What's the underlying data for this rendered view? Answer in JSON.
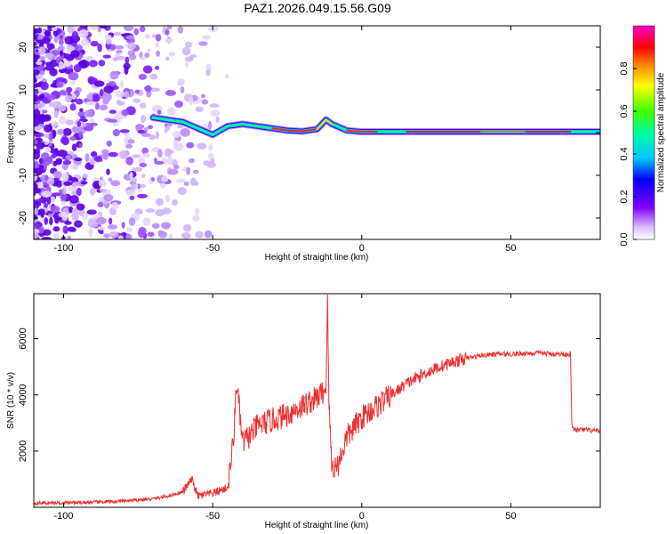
{
  "title": "PAZ1.2026.049.15.56.G09",
  "chart_data": [
    {
      "type": "heatmap",
      "xlabel": "Height of straight line (km)",
      "ylabel": "Frequency (Hz)",
      "xlim": [
        -110,
        80
      ],
      "ylim": [
        -25,
        25
      ],
      "xticks": [
        -100,
        -50,
        0,
        50
      ],
      "yticks": [
        -20,
        -10,
        0,
        10,
        20
      ],
      "colorbar": {
        "label": "Normalized spectral amplitude",
        "range": [
          0,
          1
        ],
        "ticks": [
          0.0,
          0.2,
          0.4,
          0.6,
          0.8
        ]
      },
      "ridge": {
        "x": [
          -70,
          -65,
          -60,
          -55,
          -50,
          -45,
          -40,
          -35,
          -30,
          -25,
          -20,
          -15,
          -12,
          -10,
          -5,
          0,
          10,
          20,
          40,
          60,
          70,
          80
        ],
        "frequency": [
          3.5,
          3,
          2.5,
          1,
          -0.5,
          1.5,
          2,
          1.5,
          1,
          0.5,
          0.3,
          0.8,
          3,
          2,
          0.5,
          0.2,
          0.2,
          0.2,
          0.2,
          0.2,
          0.2,
          0.2
        ]
      }
    },
    {
      "type": "line",
      "xlabel": "Height of straight line (km)",
      "ylabel": "SNR (10 * v/v)",
      "xlim": [
        -110,
        80
      ],
      "ylim": [
        0,
        7600
      ],
      "xticks": [
        -100,
        -50,
        0,
        50
      ],
      "yticks": [
        2000,
        4000,
        6000
      ],
      "color": "#f03030",
      "x": [
        -110,
        -100,
        -90,
        -80,
        -70,
        -65,
        -60,
        -57,
        -55,
        -50,
        -45,
        -43,
        -42,
        -40,
        -38,
        -35,
        -30,
        -25,
        -20,
        -15,
        -12,
        -11.5,
        -11,
        -10,
        -8,
        -5,
        0,
        5,
        10,
        15,
        20,
        25,
        30,
        35,
        40,
        45,
        50,
        55,
        60,
        65,
        70,
        70.5,
        72,
        75,
        80
      ],
      "y": [
        150,
        160,
        180,
        220,
        300,
        400,
        550,
        1000,
        400,
        500,
        700,
        2400,
        4500,
        2300,
        2500,
        2900,
        3100,
        3300,
        3600,
        3900,
        4200,
        7600,
        3600,
        1400,
        1500,
        2500,
        3200,
        3600,
        4000,
        4400,
        4700,
        4950,
        5150,
        5300,
        5400,
        5450,
        5450,
        5480,
        5480,
        5450,
        5450,
        2800,
        2750,
        2750,
        2700
      ]
    }
  ]
}
